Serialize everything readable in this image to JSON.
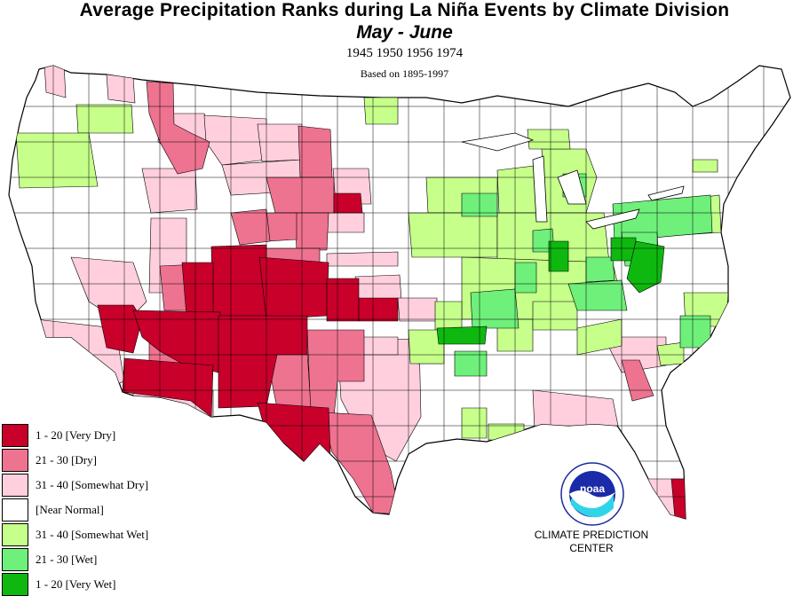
{
  "header": {
    "title": "Average Precipitation Ranks during La  Niña Events by Climate Division",
    "subtitle": "May  -  June",
    "years": "1945 1950 1956 1974",
    "basis": "Based on 1895-1997"
  },
  "colors": {
    "very_dry": "#c8002a",
    "dry": "#ee7390",
    "somewhat_dry": "#ffcfdd",
    "near_normal": "#ffffff",
    "somewhat_wet": "#c6ff8a",
    "wet": "#6ef07a",
    "very_wet": "#0fb80f",
    "outline": "#000000"
  },
  "legend": [
    {
      "label": "1 - 20 [Very Dry]",
      "color": "#c8002a"
    },
    {
      "label": "21 - 30 [Dry]",
      "color": "#ee7390"
    },
    {
      "label": "31 - 40 [Somewhat Dry]",
      "color": "#ffcfdd"
    },
    {
      "label": " [Near Normal]",
      "color": "#ffffff"
    },
    {
      "label": "31 - 40 [Somewhat Wet]",
      "color": "#c6ff8a"
    },
    {
      "label": "21 - 30 [Wet]",
      "color": "#6ef07a"
    },
    {
      "label": "1 - 20 [Very Wet]",
      "color": "#0fb80f"
    }
  ],
  "logo": {
    "text": "noaa",
    "icon": "noaa-logo-icon"
  },
  "footer": {
    "line1": "CLIMATE PREDICTION",
    "line2": "CENTER"
  }
}
